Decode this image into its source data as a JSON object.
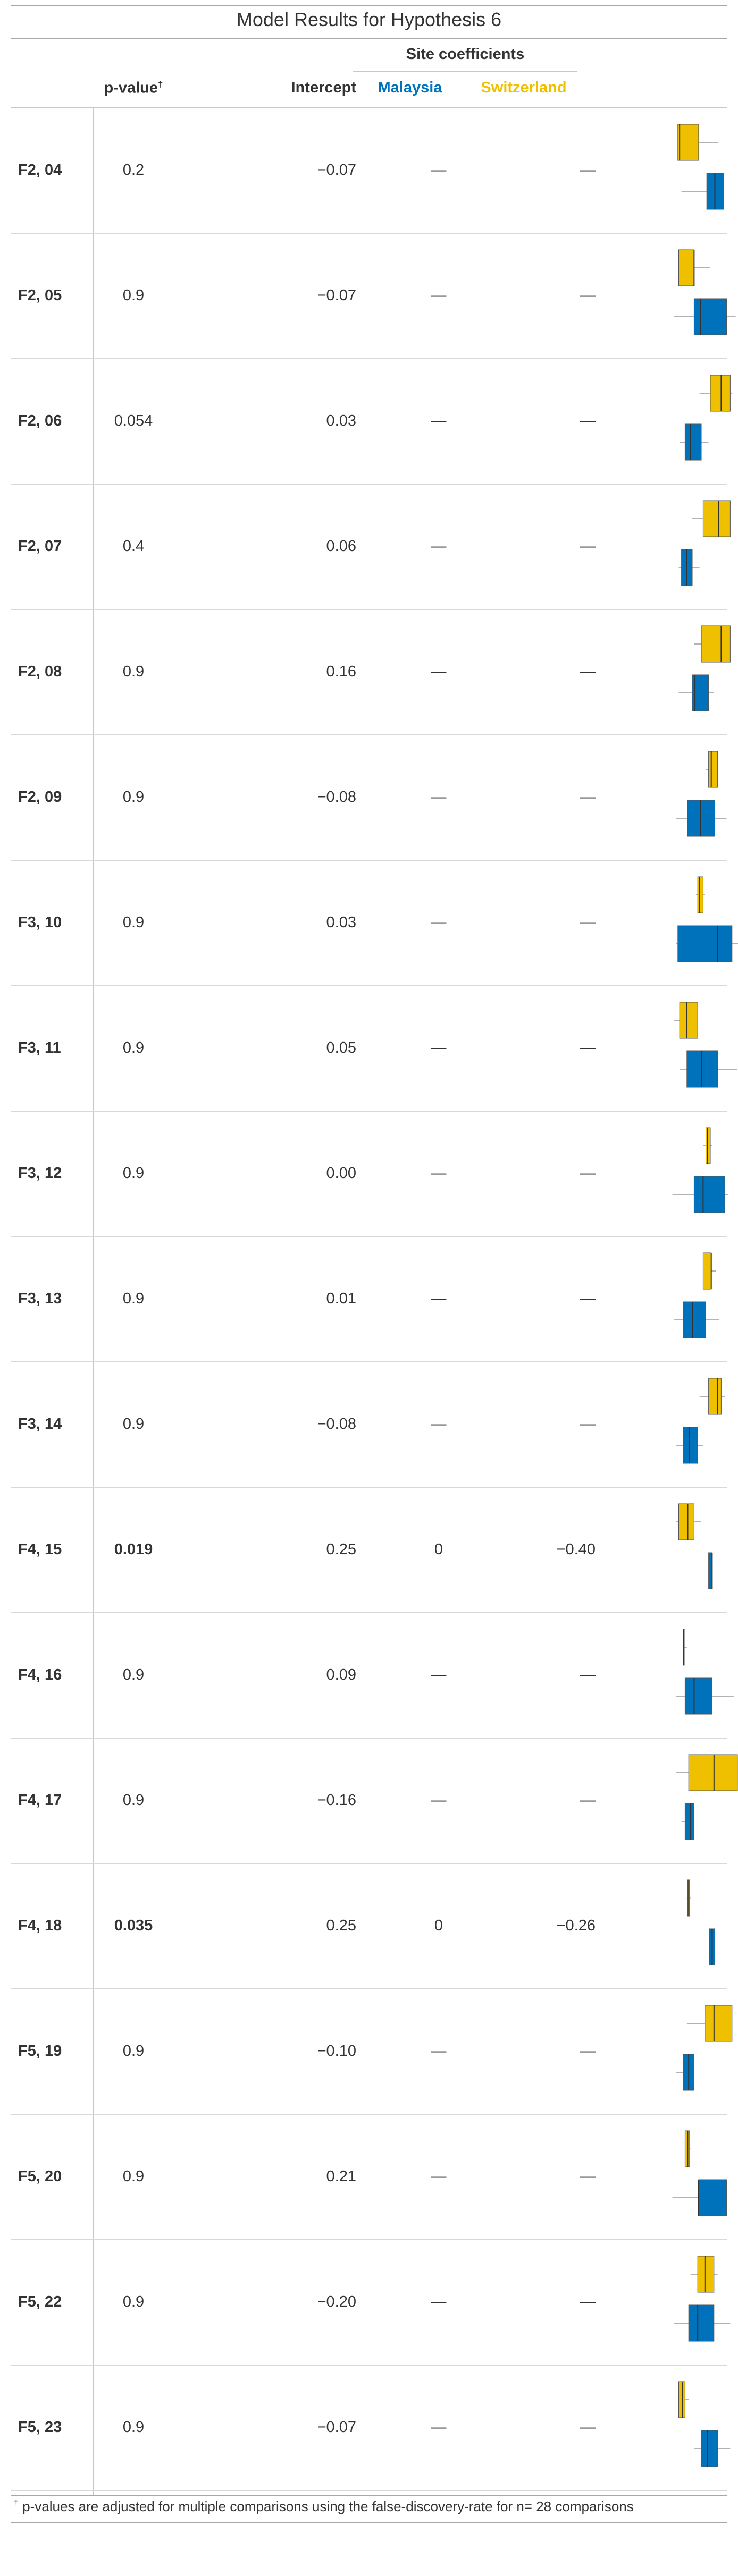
{
  "title": "Model Results for Hypothesis 6",
  "columns": {
    "pvalue": "p-value",
    "pvalue_mark": "†",
    "intercept": "Intercept",
    "spanner": "Site coefficients",
    "malaysia": "Malaysia",
    "switzerland": "Switzerland"
  },
  "colors": {
    "malaysia": "#0072BB",
    "switzerland": "#EFC000",
    "text": "#333333",
    "rule": "#a8a8a8"
  },
  "rows": [
    {
      "label": "F2, 04",
      "pvalue": "0.2",
      "intercept": "−0.07",
      "malaysia": "—",
      "switzerland": "—",
      "pvalue_bold": false,
      "box": {
        "switzerland": [
          0.44,
          0.44,
          0.46,
          0.67,
          0.89
        ],
        "malaysia": [
          0.48,
          0.76,
          0.85,
          0.95,
          0.95
        ]
      }
    },
    {
      "label": "F2, 05",
      "pvalue": "0.9",
      "intercept": "−0.07",
      "malaysia": "—",
      "switzerland": "—",
      "pvalue_bold": false,
      "box": {
        "switzerland": [
          0.45,
          0.45,
          0.62,
          0.62,
          0.8
        ],
        "malaysia": [
          0.4,
          0.62,
          0.69,
          0.98,
          1.08
        ]
      }
    },
    {
      "label": "F2, 06",
      "pvalue": "0.054",
      "intercept": "0.03",
      "malaysia": "—",
      "switzerland": "—",
      "pvalue_bold": false,
      "box": {
        "switzerland": [
          0.68,
          0.8,
          0.92,
          1.02,
          1.04
        ],
        "malaysia": [
          0.46,
          0.52,
          0.58,
          0.7,
          0.78
        ]
      }
    },
    {
      "label": "F2, 07",
      "pvalue": "0.4",
      "intercept": "0.06",
      "malaysia": "—",
      "switzerland": "—",
      "pvalue_bold": false,
      "box": {
        "switzerland": [
          0.6,
          0.72,
          0.89,
          1.02,
          1.02
        ],
        "malaysia": [
          0.45,
          0.48,
          0.54,
          0.6,
          0.68
        ]
      }
    },
    {
      "label": "F2, 08",
      "pvalue": "0.9",
      "intercept": "0.16",
      "malaysia": "—",
      "switzerland": "—",
      "pvalue_bold": false,
      "box": {
        "switzerland": [
          0.62,
          0.7,
          0.92,
          1.02,
          1.02
        ],
        "malaysia": [
          0.45,
          0.6,
          0.63,
          0.78,
          0.84
        ]
      }
    },
    {
      "label": "F2, 09",
      "pvalue": "0.9",
      "intercept": "−0.08",
      "malaysia": "—",
      "switzerland": "—",
      "pvalue_bold": false,
      "box": {
        "switzerland": [
          0.75,
          0.78,
          0.81,
          0.88,
          0.88
        ],
        "malaysia": [
          0.42,
          0.55,
          0.69,
          0.85,
          0.98
        ]
      }
    },
    {
      "label": "F3, 10",
      "pvalue": "0.9",
      "intercept": "0.03",
      "malaysia": "—",
      "switzerland": "—",
      "pvalue_bold": false,
      "box": {
        "switzerland": [
          0.64,
          0.66,
          0.68,
          0.72,
          0.74
        ],
        "malaysia": [
          0.42,
          0.44,
          0.88,
          1.04,
          1.12
        ]
      }
    },
    {
      "label": "F3, 11",
      "pvalue": "0.9",
      "intercept": "0.05",
      "malaysia": "—",
      "switzerland": "—",
      "pvalue_bold": false,
      "box": {
        "switzerland": [
          0.4,
          0.46,
          0.54,
          0.66,
          0.66
        ],
        "malaysia": [
          0.46,
          0.54,
          0.7,
          0.88,
          1.1
        ]
      }
    },
    {
      "label": "F3, 12",
      "pvalue": "0.9",
      "intercept": "0.00",
      "malaysia": "—",
      "switzerland": "—",
      "pvalue_bold": false,
      "box": {
        "switzerland": [
          0.72,
          0.75,
          0.77,
          0.8,
          0.82
        ],
        "malaysia": [
          0.38,
          0.62,
          0.72,
          0.96,
          1.0
        ]
      }
    },
    {
      "label": "F3, 13",
      "pvalue": "0.9",
      "intercept": "0.01",
      "malaysia": "—",
      "switzerland": "—",
      "pvalue_bold": false,
      "box": {
        "switzerland": [
          0.72,
          0.72,
          0.81,
          0.81,
          0.86
        ],
        "malaysia": [
          0.4,
          0.5,
          0.6,
          0.75,
          0.9
        ]
      }
    },
    {
      "label": "F3, 14",
      "pvalue": "0.9",
      "intercept": "−0.08",
      "malaysia": "—",
      "switzerland": "—",
      "pvalue_bold": false,
      "box": {
        "switzerland": [
          0.68,
          0.78,
          0.88,
          0.92,
          0.96
        ],
        "malaysia": [
          0.42,
          0.5,
          0.57,
          0.66,
          0.72
        ]
      }
    },
    {
      "label": "F4, 15",
      "pvalue": "0.019",
      "intercept": "0.25",
      "malaysia": "0",
      "switzerland": "−0.40",
      "pvalue_bold": true,
      "box": {
        "switzerland": [
          0.42,
          0.45,
          0.55,
          0.62,
          0.7
        ],
        "malaysia": [
          0.78,
          0.78,
          0.82,
          0.82,
          0.82
        ]
      }
    },
    {
      "label": "F4, 16",
      "pvalue": "0.9",
      "intercept": "0.09",
      "malaysia": "—",
      "switzerland": "—",
      "pvalue_bold": false,
      "box": {
        "switzerland": [
          0.5,
          0.5,
          0.5,
          0.51,
          0.54
        ],
        "malaysia": [
          0.42,
          0.52,
          0.62,
          0.82,
          1.06
        ]
      }
    },
    {
      "label": "F4, 17",
      "pvalue": "0.9",
      "intercept": "−0.16",
      "malaysia": "—",
      "switzerland": "—",
      "pvalue_bold": false,
      "box": {
        "switzerland": [
          0.42,
          0.56,
          0.84,
          1.1,
          1.1
        ],
        "malaysia": [
          0.48,
          0.52,
          0.58,
          0.62,
          0.62
        ]
      }
    },
    {
      "label": "F4, 18",
      "pvalue": "0.035",
      "intercept": "0.25",
      "malaysia": "0",
      "switzerland": "−0.26",
      "pvalue_bold": true,
      "box": {
        "switzerland": [
          0.54,
          0.55,
          0.56,
          0.57,
          0.58
        ],
        "malaysia": [
          0.79,
          0.79,
          0.82,
          0.85,
          0.85
        ]
      }
    },
    {
      "label": "F5, 19",
      "pvalue": "0.9",
      "intercept": "−0.10",
      "malaysia": "—",
      "switzerland": "—",
      "pvalue_bold": false,
      "box": {
        "switzerland": [
          0.54,
          0.74,
          0.84,
          1.04,
          1.04
        ],
        "malaysia": [
          0.42,
          0.5,
          0.56,
          0.62,
          0.62
        ]
      }
    },
    {
      "label": "F5, 20",
      "pvalue": "0.9",
      "intercept": "0.21",
      "malaysia": "—",
      "switzerland": "—",
      "pvalue_bold": false,
      "box": {
        "switzerland": [
          0.52,
          0.52,
          0.55,
          0.57,
          0.58
        ],
        "malaysia": [
          0.38,
          0.67,
          0.67,
          0.98,
          0.98
        ]
      }
    },
    {
      "label": "F5, 22",
      "pvalue": "0.9",
      "intercept": "−0.20",
      "malaysia": "—",
      "switzerland": "—",
      "pvalue_bold": false,
      "box": {
        "switzerland": [
          0.58,
          0.66,
          0.74,
          0.84,
          0.88
        ],
        "malaysia": [
          0.4,
          0.56,
          0.66,
          0.84,
          1.02
        ]
      }
    },
    {
      "label": "F5, 23",
      "pvalue": "0.9",
      "intercept": "−0.07",
      "malaysia": "—",
      "switzerland": "—",
      "pvalue_bold": false,
      "box": {
        "switzerland": [
          0.44,
          0.45,
          0.49,
          0.52,
          0.56
        ],
        "malaysia": [
          0.62,
          0.7,
          0.77,
          0.88,
          1.02
        ]
      }
    }
  ],
  "footnote": {
    "mark": "†",
    "text": "p-values are adjusted for multiple comparisons using the false-discovery-rate for n= 28 comparisons"
  }
}
